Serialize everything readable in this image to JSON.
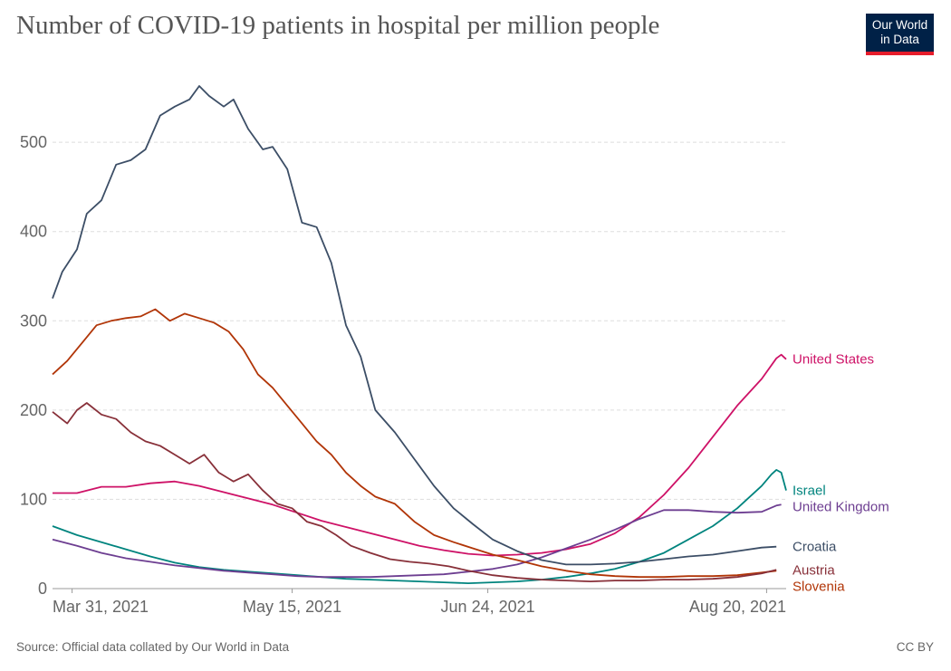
{
  "title": "Number of COVID-19 patients in hospital per million people",
  "logo": {
    "line1": "Our World",
    "line2": "in Data"
  },
  "footer": {
    "source": "Source: Official data collated by Our World in Data",
    "license": "CC BY"
  },
  "colors": {
    "accent": "#e61c2b",
    "brand": "#002147"
  },
  "chart_data": {
    "type": "line",
    "title": "Number of COVID-19 patients in hospital per million people",
    "xlabel": "",
    "ylabel": "",
    "x_range": [
      "2021-03-27",
      "2021-08-24"
    ],
    "ylim": [
      0,
      560
    ],
    "y_ticks": [
      0,
      100,
      200,
      300,
      400,
      500
    ],
    "x_ticks": [
      {
        "date": "2021-03-31",
        "label": "Mar 31, 2021"
      },
      {
        "date": "2021-05-15",
        "label": "May 15, 2021"
      },
      {
        "date": "2021-06-24",
        "label": "Jun 24, 2021"
      },
      {
        "date": "2021-08-20",
        "label": "Aug 20, 2021"
      }
    ],
    "grid": true,
    "legend": "right-end labels",
    "series": [
      {
        "name": "United States",
        "color": "#ce1267",
        "points": [
          [
            "2021-03-27",
            107
          ],
          [
            "2021-04-01",
            107
          ],
          [
            "2021-04-06",
            114
          ],
          [
            "2021-04-11",
            114
          ],
          [
            "2021-04-16",
            118
          ],
          [
            "2021-04-21",
            120
          ],
          [
            "2021-04-26",
            115
          ],
          [
            "2021-05-01",
            108
          ],
          [
            "2021-05-06",
            101
          ],
          [
            "2021-05-11",
            94
          ],
          [
            "2021-05-16",
            85
          ],
          [
            "2021-05-21",
            76
          ],
          [
            "2021-05-26",
            69
          ],
          [
            "2021-05-31",
            62
          ],
          [
            "2021-06-05",
            55
          ],
          [
            "2021-06-10",
            48
          ],
          [
            "2021-06-15",
            43
          ],
          [
            "2021-06-20",
            39
          ],
          [
            "2021-06-25",
            37
          ],
          [
            "2021-06-30",
            38
          ],
          [
            "2021-07-05",
            40
          ],
          [
            "2021-07-10",
            44
          ],
          [
            "2021-07-15",
            50
          ],
          [
            "2021-07-20",
            62
          ],
          [
            "2021-07-25",
            80
          ],
          [
            "2021-07-30",
            105
          ],
          [
            "2021-08-04",
            135
          ],
          [
            "2021-08-09",
            170
          ],
          [
            "2021-08-14",
            205
          ],
          [
            "2021-08-19",
            235
          ],
          [
            "2021-08-22",
            258
          ],
          [
            "2021-08-23",
            262
          ],
          [
            "2021-08-24",
            257
          ]
        ]
      },
      {
        "name": "Israel",
        "color": "#00847e",
        "points": [
          [
            "2021-03-27",
            70
          ],
          [
            "2021-04-01",
            60
          ],
          [
            "2021-04-06",
            52
          ],
          [
            "2021-04-11",
            44
          ],
          [
            "2021-04-16",
            36
          ],
          [
            "2021-04-21",
            29
          ],
          [
            "2021-04-26",
            24
          ],
          [
            "2021-05-01",
            21
          ],
          [
            "2021-05-06",
            19
          ],
          [
            "2021-05-11",
            17
          ],
          [
            "2021-05-16",
            15
          ],
          [
            "2021-05-21",
            13
          ],
          [
            "2021-05-26",
            11
          ],
          [
            "2021-05-31",
            10
          ],
          [
            "2021-06-05",
            9
          ],
          [
            "2021-06-10",
            8
          ],
          [
            "2021-06-15",
            7
          ],
          [
            "2021-06-20",
            6
          ],
          [
            "2021-06-25",
            7
          ],
          [
            "2021-06-30",
            8
          ],
          [
            "2021-07-05",
            10
          ],
          [
            "2021-07-10",
            13
          ],
          [
            "2021-07-15",
            17
          ],
          [
            "2021-07-20",
            22
          ],
          [
            "2021-07-25",
            30
          ],
          [
            "2021-07-30",
            40
          ],
          [
            "2021-08-04",
            55
          ],
          [
            "2021-08-09",
            70
          ],
          [
            "2021-08-14",
            90
          ],
          [
            "2021-08-19",
            115
          ],
          [
            "2021-08-21",
            128
          ],
          [
            "2021-08-22",
            133
          ],
          [
            "2021-08-23",
            130
          ],
          [
            "2021-08-24",
            110
          ]
        ]
      },
      {
        "name": "United Kingdom",
        "color": "#6d3e91",
        "points": [
          [
            "2021-03-27",
            55
          ],
          [
            "2021-04-01",
            48
          ],
          [
            "2021-04-06",
            40
          ],
          [
            "2021-04-11",
            34
          ],
          [
            "2021-04-16",
            30
          ],
          [
            "2021-04-21",
            26
          ],
          [
            "2021-04-26",
            23
          ],
          [
            "2021-05-01",
            20
          ],
          [
            "2021-05-06",
            18
          ],
          [
            "2021-05-11",
            16
          ],
          [
            "2021-05-16",
            14
          ],
          [
            "2021-05-21",
            13
          ],
          [
            "2021-05-26",
            13
          ],
          [
            "2021-05-31",
            13
          ],
          [
            "2021-06-05",
            14
          ],
          [
            "2021-06-10",
            15
          ],
          [
            "2021-06-15",
            16
          ],
          [
            "2021-06-20",
            19
          ],
          [
            "2021-06-25",
            22
          ],
          [
            "2021-06-30",
            27
          ],
          [
            "2021-07-05",
            35
          ],
          [
            "2021-07-10",
            45
          ],
          [
            "2021-07-15",
            55
          ],
          [
            "2021-07-20",
            66
          ],
          [
            "2021-07-25",
            78
          ],
          [
            "2021-07-30",
            88
          ],
          [
            "2021-08-04",
            88
          ],
          [
            "2021-08-09",
            86
          ],
          [
            "2021-08-14",
            85
          ],
          [
            "2021-08-19",
            86
          ],
          [
            "2021-08-22",
            93
          ],
          [
            "2021-08-23",
            94
          ]
        ]
      },
      {
        "name": "Croatia",
        "color": "#3c4e66",
        "points": [
          [
            "2021-03-27",
            325
          ],
          [
            "2021-03-29",
            355
          ],
          [
            "2021-04-01",
            380
          ],
          [
            "2021-04-03",
            420
          ],
          [
            "2021-04-06",
            435
          ],
          [
            "2021-04-09",
            475
          ],
          [
            "2021-04-12",
            480
          ],
          [
            "2021-04-15",
            492
          ],
          [
            "2021-04-18",
            530
          ],
          [
            "2021-04-21",
            540
          ],
          [
            "2021-04-24",
            548
          ],
          [
            "2021-04-26",
            563
          ],
          [
            "2021-04-28",
            552
          ],
          [
            "2021-05-01",
            540
          ],
          [
            "2021-05-03",
            548
          ],
          [
            "2021-05-06",
            515
          ],
          [
            "2021-05-09",
            492
          ],
          [
            "2021-05-11",
            495
          ],
          [
            "2021-05-14",
            470
          ],
          [
            "2021-05-17",
            410
          ],
          [
            "2021-05-20",
            405
          ],
          [
            "2021-05-23",
            365
          ],
          [
            "2021-05-26",
            295
          ],
          [
            "2021-05-29",
            260
          ],
          [
            "2021-06-01",
            200
          ],
          [
            "2021-06-05",
            175
          ],
          [
            "2021-06-09",
            145
          ],
          [
            "2021-06-13",
            115
          ],
          [
            "2021-06-17",
            90
          ],
          [
            "2021-06-21",
            72
          ],
          [
            "2021-06-25",
            55
          ],
          [
            "2021-06-30",
            42
          ],
          [
            "2021-07-05",
            32
          ],
          [
            "2021-07-10",
            27
          ],
          [
            "2021-07-15",
            27
          ],
          [
            "2021-07-20",
            28
          ],
          [
            "2021-07-25",
            30
          ],
          [
            "2021-07-30",
            33
          ],
          [
            "2021-08-04",
            36
          ],
          [
            "2021-08-09",
            38
          ],
          [
            "2021-08-14",
            42
          ],
          [
            "2021-08-19",
            46
          ],
          [
            "2021-08-22",
            47
          ]
        ]
      },
      {
        "name": "Slovenia",
        "color": "#b13507",
        "points": [
          [
            "2021-03-27",
            240
          ],
          [
            "2021-03-30",
            255
          ],
          [
            "2021-04-02",
            275
          ],
          [
            "2021-04-05",
            295
          ],
          [
            "2021-04-08",
            300
          ],
          [
            "2021-04-11",
            303
          ],
          [
            "2021-04-14",
            305
          ],
          [
            "2021-04-17",
            313
          ],
          [
            "2021-04-20",
            300
          ],
          [
            "2021-04-23",
            308
          ],
          [
            "2021-04-26",
            303
          ],
          [
            "2021-04-29",
            298
          ],
          [
            "2021-05-02",
            288
          ],
          [
            "2021-05-05",
            268
          ],
          [
            "2021-05-08",
            240
          ],
          [
            "2021-05-11",
            225
          ],
          [
            "2021-05-14",
            205
          ],
          [
            "2021-05-17",
            185
          ],
          [
            "2021-05-20",
            165
          ],
          [
            "2021-05-23",
            150
          ],
          [
            "2021-05-26",
            130
          ],
          [
            "2021-05-29",
            115
          ],
          [
            "2021-06-01",
            103
          ],
          [
            "2021-06-05",
            95
          ],
          [
            "2021-06-09",
            75
          ],
          [
            "2021-06-13",
            60
          ],
          [
            "2021-06-17",
            52
          ],
          [
            "2021-06-21",
            45
          ],
          [
            "2021-06-25",
            38
          ],
          [
            "2021-06-30",
            32
          ],
          [
            "2021-07-05",
            25
          ],
          [
            "2021-07-10",
            20
          ],
          [
            "2021-07-15",
            16
          ],
          [
            "2021-07-20",
            14
          ],
          [
            "2021-07-25",
            13
          ],
          [
            "2021-07-30",
            13
          ],
          [
            "2021-08-04",
            14
          ],
          [
            "2021-08-09",
            14
          ],
          [
            "2021-08-14",
            15
          ],
          [
            "2021-08-19",
            18
          ],
          [
            "2021-08-22",
            20
          ]
        ]
      },
      {
        "name": "Austria",
        "color": "#883039",
        "points": [
          [
            "2021-03-27",
            198
          ],
          [
            "2021-03-30",
            185
          ],
          [
            "2021-04-01",
            200
          ],
          [
            "2021-04-03",
            208
          ],
          [
            "2021-04-06",
            195
          ],
          [
            "2021-04-09",
            190
          ],
          [
            "2021-04-12",
            175
          ],
          [
            "2021-04-15",
            165
          ],
          [
            "2021-04-18",
            160
          ],
          [
            "2021-04-21",
            150
          ],
          [
            "2021-04-24",
            140
          ],
          [
            "2021-04-27",
            150
          ],
          [
            "2021-04-30",
            130
          ],
          [
            "2021-05-03",
            120
          ],
          [
            "2021-05-06",
            128
          ],
          [
            "2021-05-09",
            110
          ],
          [
            "2021-05-12",
            95
          ],
          [
            "2021-05-15",
            90
          ],
          [
            "2021-05-18",
            75
          ],
          [
            "2021-05-21",
            70
          ],
          [
            "2021-05-24",
            60
          ],
          [
            "2021-05-27",
            48
          ],
          [
            "2021-05-31",
            40
          ],
          [
            "2021-06-04",
            33
          ],
          [
            "2021-06-08",
            30
          ],
          [
            "2021-06-12",
            28
          ],
          [
            "2021-06-16",
            25
          ],
          [
            "2021-06-20",
            20
          ],
          [
            "2021-06-25",
            15
          ],
          [
            "2021-06-30",
            12
          ],
          [
            "2021-07-05",
            10
          ],
          [
            "2021-07-10",
            9
          ],
          [
            "2021-07-15",
            8
          ],
          [
            "2021-07-20",
            9
          ],
          [
            "2021-07-25",
            9
          ],
          [
            "2021-07-30",
            10
          ],
          [
            "2021-08-04",
            10
          ],
          [
            "2021-08-09",
            11
          ],
          [
            "2021-08-14",
            13
          ],
          [
            "2021-08-19",
            17
          ],
          [
            "2021-08-22",
            21
          ]
        ]
      }
    ]
  }
}
